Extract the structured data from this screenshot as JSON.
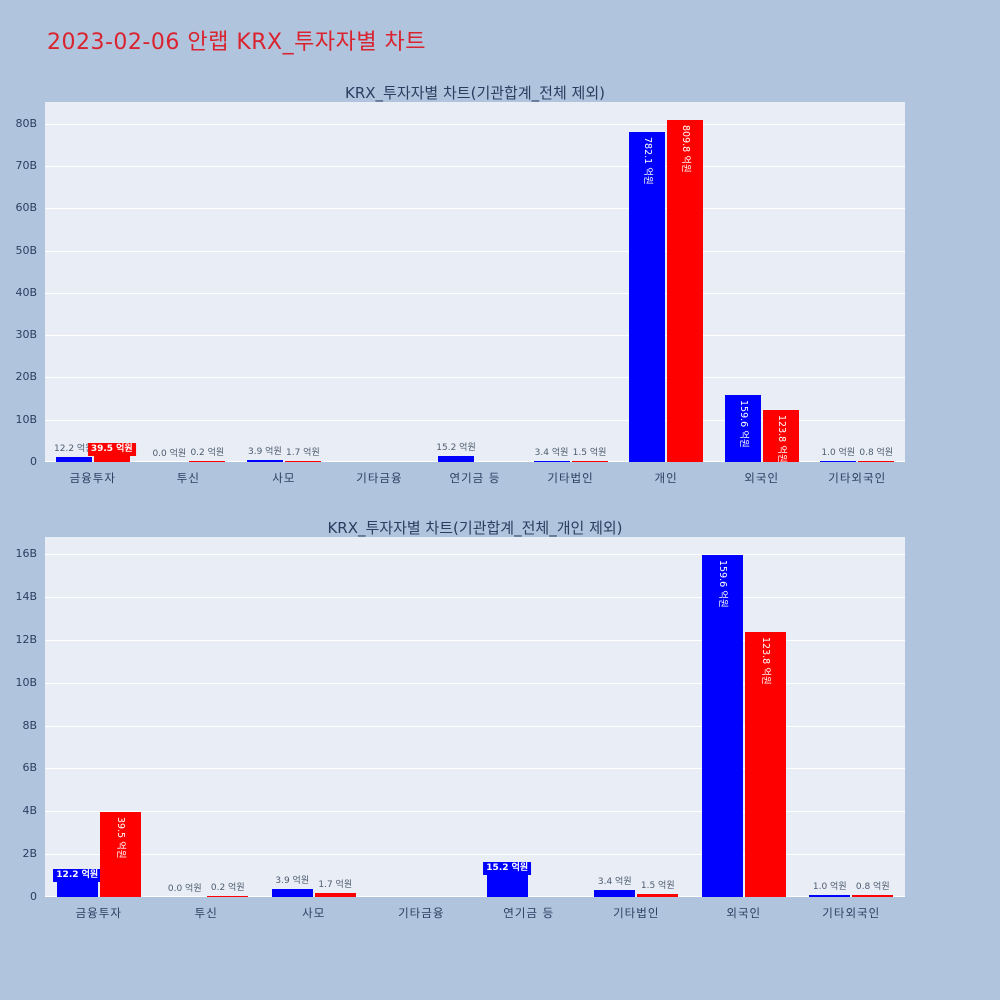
{
  "page": {
    "title": "2023-02-06 안랩 KRX_투자자별 차트",
    "title_color": "#d9232e",
    "background": "#b0c4de",
    "plot_background": "#e8edf6"
  },
  "chart_data": [
    {
      "type": "bar",
      "title": "KRX_투자자별 차트(기관합계_전체 제외)",
      "unit": "억원",
      "categories": [
        "금융투자",
        "투신",
        "사모",
        "기타금융",
        "연기금 등",
        "기타법인",
        "개인",
        "외국인",
        "기타외국인"
      ],
      "yticks": [
        "0",
        "10B",
        "20B",
        "30B",
        "40B",
        "50B",
        "60B",
        "70B",
        "80B"
      ],
      "ymax_b": 85.2,
      "grid": true,
      "legend": "none",
      "series": [
        {
          "name": "blue",
          "color": "#0000ff",
          "values": [
            12.2,
            0.0,
            3.9,
            null,
            15.2,
            3.4,
            782.1,
            159.6,
            1.0
          ],
          "labels": [
            "12.2 억원",
            "0.0 억원",
            "3.9 억원",
            null,
            "15.2 억원",
            "3.4 억원",
            "782.1 억원",
            "159.6 억원",
            "1.0 억원"
          ]
        },
        {
          "name": "red",
          "color": "#ff0000",
          "values": [
            39.5,
            0.2,
            1.7,
            null,
            null,
            1.5,
            809.8,
            123.8,
            0.8
          ],
          "labels": [
            "39.5 억원",
            "0.2 억원",
            "1.7 억원",
            null,
            null,
            "1.5 억원",
            "809.8 억원",
            "123.8 억원",
            "0.8 억원"
          ]
        }
      ]
    },
    {
      "type": "bar",
      "title": "KRX_투자자별 차트(기관합계_전체_개인 제외)",
      "unit": "억원",
      "categories": [
        "금융투자",
        "투신",
        "사모",
        "기타금융",
        "연기금 등",
        "기타법인",
        "외국인",
        "기타외국인"
      ],
      "yticks": [
        "0",
        "2B",
        "4B",
        "6B",
        "8B",
        "10B",
        "12B",
        "14B",
        "16B"
      ],
      "ymax_b": 16.8,
      "grid": true,
      "legend": "none",
      "series": [
        {
          "name": "blue",
          "color": "#0000ff",
          "values": [
            12.2,
            0.0,
            3.9,
            null,
            15.2,
            3.4,
            159.6,
            1.0
          ],
          "labels": [
            "12.2 억원",
            "0.0 억원",
            "3.9 억원",
            null,
            "15.2 억원",
            "3.4 억원",
            "159.6 억원",
            "1.0 억원"
          ]
        },
        {
          "name": "red",
          "color": "#ff0000",
          "values": [
            39.5,
            0.2,
            1.7,
            null,
            null,
            1.5,
            123.8,
            0.8
          ],
          "labels": [
            "39.5 억원",
            "0.2 억원",
            "1.7 억원",
            null,
            null,
            "1.5 억원",
            "123.8 억원",
            "0.8 억원"
          ]
        }
      ]
    }
  ]
}
